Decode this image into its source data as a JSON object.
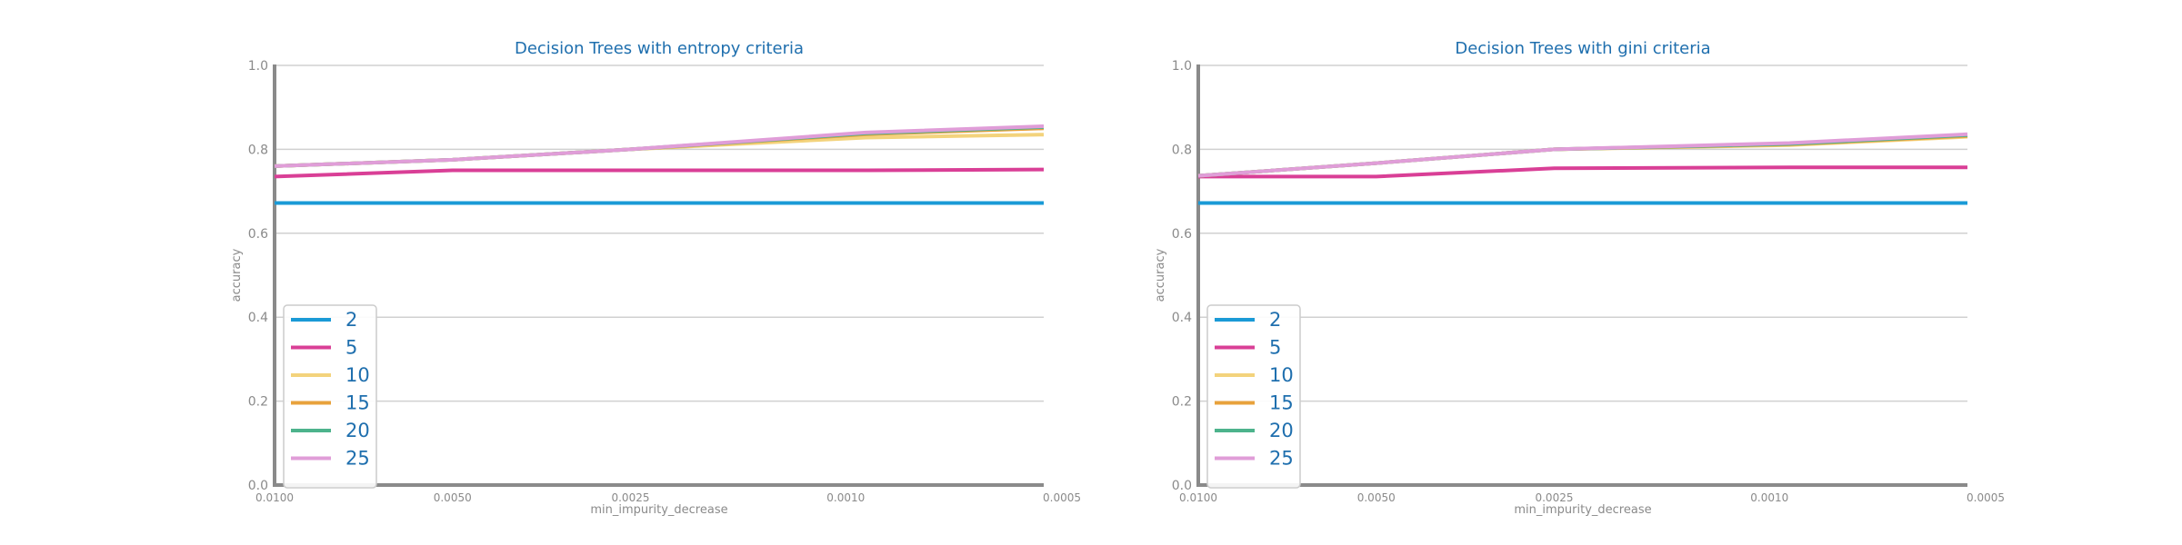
{
  "chart_data": [
    {
      "type": "line",
      "title": "Decision Trees with entropy criteria",
      "xlabel": "min_impurity_decrease",
      "ylabel": "accuracy",
      "x": [
        0.01,
        0.005,
        0.0025,
        0.001,
        0.0005
      ],
      "x_tick_labels": [
        "0.0100",
        "0.0050",
        "0.0025",
        "0.0010",
        "0.0005"
      ],
      "y_tick_labels": [
        "0.0",
        "0.2",
        "0.4",
        "0.6",
        "0.8",
        "1.0"
      ],
      "xlim": [
        0.01,
        0.0005
      ],
      "ylim": [
        0,
        1
      ],
      "x_inverted": true,
      "grid": "horizontal",
      "legend_position": "lower-left",
      "series": [
        {
          "name": "2",
          "color": "#1a9ad6",
          "values": [
            0.672,
            0.672,
            0.672,
            0.672,
            0.672
          ]
        },
        {
          "name": "5",
          "color": "#d93f96",
          "values": [
            0.735,
            0.75,
            0.75,
            0.75,
            0.752
          ]
        },
        {
          "name": "10",
          "color": "#f3d37c",
          "values": [
            0.76,
            0.775,
            0.8,
            0.828,
            0.835
          ]
        },
        {
          "name": "15",
          "color": "#e8a23c",
          "values": [
            0.76,
            0.775,
            0.8,
            0.836,
            0.85
          ]
        },
        {
          "name": "20",
          "color": "#4db38c",
          "values": [
            0.76,
            0.775,
            0.8,
            0.838,
            0.853
          ]
        },
        {
          "name": "25",
          "color": "#e09dd8",
          "values": [
            0.76,
            0.775,
            0.8,
            0.84,
            0.855
          ]
        }
      ]
    },
    {
      "type": "line",
      "title": "Decision Trees with gini criteria",
      "xlabel": "min_impurity_decrease",
      "ylabel": "accuracy",
      "x": [
        0.01,
        0.005,
        0.0025,
        0.001,
        0.0005
      ],
      "x_tick_labels": [
        "0.0100",
        "0.0050",
        "0.0025",
        "0.0010",
        "0.0005"
      ],
      "y_tick_labels": [
        "0.0",
        "0.2",
        "0.4",
        "0.6",
        "0.8",
        "1.0"
      ],
      "xlim": [
        0.01,
        0.0005
      ],
      "ylim": [
        0,
        1
      ],
      "x_inverted": true,
      "grid": "horizontal",
      "legend_position": "lower-left",
      "series": [
        {
          "name": "2",
          "color": "#1a9ad6",
          "values": [
            0.672,
            0.672,
            0.672,
            0.672,
            0.672
          ]
        },
        {
          "name": "5",
          "color": "#d93f96",
          "values": [
            0.735,
            0.735,
            0.755,
            0.757,
            0.757
          ]
        },
        {
          "name": "10",
          "color": "#f3d37c",
          "values": [
            0.737,
            0.767,
            0.8,
            0.81,
            0.83
          ]
        },
        {
          "name": "15",
          "color": "#e8a23c",
          "values": [
            0.737,
            0.767,
            0.8,
            0.812,
            0.832
          ]
        },
        {
          "name": "20",
          "color": "#4db38c",
          "values": [
            0.737,
            0.767,
            0.8,
            0.813,
            0.834
          ]
        },
        {
          "name": "25",
          "color": "#e09dd8",
          "values": [
            0.737,
            0.767,
            0.8,
            0.815,
            0.836
          ]
        }
      ]
    }
  ]
}
